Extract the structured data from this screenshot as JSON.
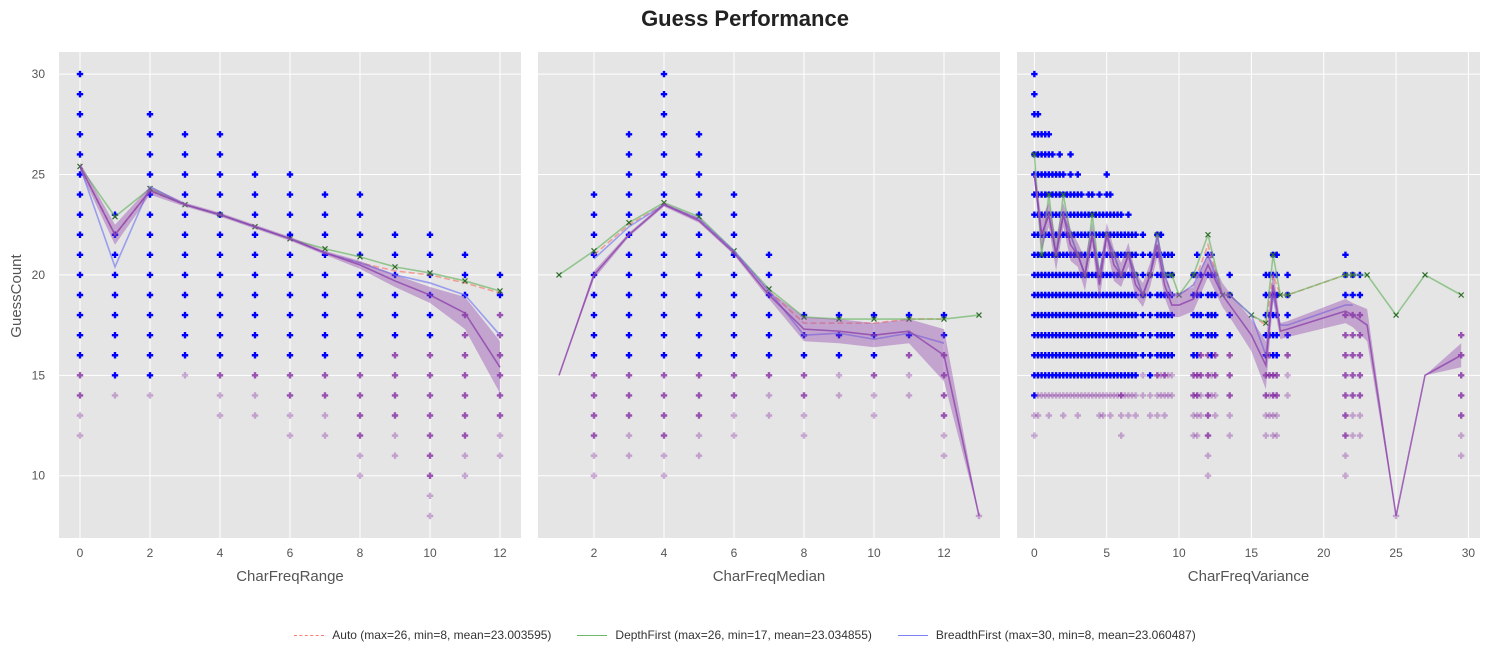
{
  "title": "Guess Performance",
  "ylabel": "GuessCount",
  "legend": [
    {
      "label": "Auto (max=26, min=8, mean=23.003595)",
      "color": "#fa8072",
      "dash": true
    },
    {
      "label": "DepthFirst (max=26, min=17, mean=23.034855)",
      "color": "#6fb86a",
      "dash": false
    },
    {
      "label": "BreadthFirst (max=30, min=8, mean=23.060487)",
      "color": "#7b7ff2",
      "dash": false
    }
  ],
  "colors": {
    "auto": "#fa8072",
    "depth": "#6fb86a",
    "breadth": "#7b7ff2",
    "mean_line": "#8e44ad",
    "points": "#0000ff",
    "low_points": "#7d1f9e",
    "panel_bg": "#e5e5e5"
  },
  "chart_data": [
    {
      "type": "line",
      "xlabel": "CharFreqRange",
      "xlim": [
        -0.6,
        12.6
      ],
      "ylim": [
        6.9,
        31.1
      ],
      "xticks": [
        0,
        2,
        4,
        6,
        8,
        10,
        12
      ],
      "yticks": [
        10,
        15,
        20,
        25,
        30
      ],
      "x": [
        0,
        1,
        2,
        3,
        4,
        5,
        6,
        7,
        8,
        9,
        10,
        11,
        12
      ],
      "series": [
        {
          "key": "auto",
          "values": [
            25.4,
            22.0,
            24.2,
            23.5,
            23.0,
            22.4,
            21.8,
            21.1,
            20.6,
            20.2,
            20.0,
            19.6,
            19.1
          ]
        },
        {
          "key": "depth",
          "values": [
            25.4,
            22.9,
            24.3,
            23.5,
            23.0,
            22.4,
            21.8,
            21.3,
            20.9,
            20.4,
            20.1,
            19.7,
            19.2
          ]
        },
        {
          "key": "breadth",
          "values": [
            25.4,
            20.4,
            24.4,
            23.5,
            23.0,
            22.4,
            21.8,
            21.1,
            20.6,
            20.0,
            19.6,
            19.0,
            17.0
          ]
        },
        {
          "key": "mean",
          "values": [
            25.4,
            22.0,
            24.2,
            23.5,
            23.0,
            22.4,
            21.8,
            21.1,
            20.5,
            19.7,
            19.0,
            18.1,
            15.4
          ],
          "band": [
            0.2,
            0.5,
            0.2,
            0.1,
            0.1,
            0.1,
            0.1,
            0.1,
            0.2,
            0.3,
            0.4,
            0.8,
            1.3
          ]
        }
      ],
      "scatter": {
        "x": [
          0,
          1,
          2,
          3,
          4,
          5,
          6,
          7,
          8,
          9,
          10,
          11,
          12
        ],
        "ymin": [
          12,
          14,
          14,
          15,
          13,
          13,
          12,
          12,
          10,
          11,
          8,
          10,
          11
        ],
        "ymax": [
          30,
          23,
          28,
          27,
          27,
          25,
          25,
          24,
          24,
          22,
          22,
          21,
          20
        ],
        "bluemin": [
          16,
          15,
          15,
          16,
          16,
          16,
          16,
          16,
          16,
          17,
          17,
          19,
          19
        ]
      }
    },
    {
      "type": "line",
      "xlabel": "CharFreqMedian",
      "xlim": [
        0.4,
        13.6
      ],
      "ylim": [
        6.9,
        31.1
      ],
      "xticks": [
        2,
        4,
        6,
        8,
        10,
        12
      ],
      "yticks": [
        10,
        15,
        20,
        25,
        30
      ],
      "x": [
        1,
        2,
        3,
        4,
        5,
        6,
        7,
        8,
        9,
        10,
        11,
        12,
        13
      ],
      "series": [
        {
          "key": "auto",
          "values": [
            null,
            21.0,
            22.5,
            23.5,
            22.8,
            21.2,
            19.2,
            17.6,
            17.6,
            17.6,
            17.8,
            17.8,
            null
          ]
        },
        {
          "key": "depth",
          "values": [
            20.0,
            21.2,
            22.6,
            23.6,
            22.9,
            21.2,
            19.3,
            17.9,
            17.8,
            17.8,
            17.8,
            17.8,
            18.0
          ]
        },
        {
          "key": "breadth",
          "values": [
            null,
            20.8,
            22.4,
            23.5,
            22.8,
            21.2,
            19.2,
            17.0,
            17.1,
            16.8,
            17.1,
            16.6,
            null
          ]
        },
        {
          "key": "mean",
          "values": [
            15.0,
            20.0,
            22.0,
            23.5,
            22.7,
            21.1,
            19.0,
            17.3,
            17.2,
            17.0,
            17.2,
            16.0,
            8.0
          ],
          "band": [
            0,
            0.2,
            0.1,
            0.1,
            0.1,
            0.1,
            0.2,
            0.6,
            0.6,
            0.6,
            0.6,
            1.3,
            0
          ]
        }
      ],
      "scatter": {
        "x": [
          2,
          3,
          4,
          5,
          6,
          7,
          8,
          9,
          10,
          11,
          12,
          13
        ],
        "ymin": [
          10,
          11,
          10,
          11,
          12,
          13,
          12,
          14,
          13,
          14,
          11,
          8
        ],
        "ymax": [
          24,
          27,
          30,
          27,
          24,
          21,
          18,
          18,
          18,
          18,
          18,
          8
        ],
        "bluemin": [
          16,
          16,
          16,
          16,
          16,
          16,
          16,
          16,
          16,
          17,
          17,
          99
        ]
      }
    },
    {
      "type": "line",
      "xlabel": "CharFreqVariance",
      "xlim": [
        -1.2,
        30.8
      ],
      "ylim": [
        6.9,
        31.1
      ],
      "xticks": [
        0,
        5,
        10,
        15,
        20,
        25,
        30
      ],
      "yticks": [
        10,
        15,
        20,
        25,
        30
      ],
      "x": [
        0,
        0.5,
        1,
        1.5,
        2,
        2.5,
        3,
        3.5,
        4,
        4.5,
        5,
        5.5,
        6,
        6.5,
        7,
        7.5,
        8,
        8.5,
        9,
        9.5,
        10,
        11,
        12,
        13,
        13.5,
        15,
        16,
        16.5,
        17,
        17.5,
        21.5,
        22,
        23,
        25,
        27,
        29.5
      ],
      "series": [
        {
          "key": "auto",
          "values": [
            25,
            22,
            23,
            21,
            23,
            22,
            21,
            20,
            22,
            20,
            22,
            21,
            20,
            21,
            20,
            19,
            20,
            22,
            20,
            19,
            19,
            19.5,
            21.5,
            19,
            19,
            18,
            17.5,
            20,
            19,
            19,
            20,
            20,
            null,
            null,
            null,
            null
          ]
        },
        {
          "key": "depth",
          "values": [
            26,
            21,
            24,
            21,
            24,
            22,
            21,
            20,
            23,
            20,
            22,
            21,
            20,
            21,
            20,
            19,
            20,
            22,
            20,
            20,
            19,
            20,
            22,
            19,
            19,
            18,
            17.6,
            21,
            19,
            19,
            20,
            20,
            20,
            18,
            20,
            19
          ]
        },
        {
          "key": "breadth",
          "values": [
            25,
            22,
            23,
            21,
            23,
            22,
            21,
            20,
            22,
            20,
            22,
            21,
            20,
            21,
            20,
            19,
            20,
            22,
            20,
            19,
            19,
            19.5,
            21,
            19,
            19,
            18,
            16,
            19,
            17.5,
            17.5,
            18.5,
            18.5,
            null,
            null,
            null,
            null
          ]
        },
        {
          "key": "mean",
          "values": [
            25,
            22,
            23,
            21,
            23,
            21.5,
            21,
            20,
            22,
            19.5,
            22,
            20.5,
            20,
            21,
            19.5,
            19,
            20,
            21.5,
            19.5,
            18.5,
            18.5,
            18.8,
            20.5,
            19,
            18.5,
            17,
            15.5,
            19.5,
            17.2,
            17.3,
            18.2,
            18.0,
            17.5,
            8,
            15,
            16
          ],
          "band": [
            0.4,
            0.8,
            0.6,
            0.8,
            0.6,
            0.8,
            0.6,
            0.8,
            0.6,
            0.8,
            0.6,
            0.8,
            0.6,
            0.6,
            0.6,
            0.6,
            0.6,
            0.6,
            0.6,
            0.6,
            0.6,
            0.6,
            0.6,
            0.6,
            0.6,
            0.8,
            1.2,
            0.8,
            0.4,
            0.4,
            0.6,
            0.6,
            0.8,
            0,
            0,
            0.6
          ]
        }
      ],
      "scatter": {
        "x": [
          0,
          0.25,
          0.5,
          0.75,
          1,
          1.25,
          1.5,
          1.75,
          2,
          2.25,
          2.5,
          2.75,
          3,
          3.25,
          3.5,
          3.75,
          4,
          4.25,
          4.5,
          4.75,
          5,
          5.25,
          5.5,
          5.75,
          6,
          6.25,
          6.5,
          6.75,
          7,
          7.5,
          8,
          8.5,
          8.75,
          9,
          9.25,
          9.5,
          11,
          11.25,
          11.5,
          12,
          12.25,
          12.5,
          13.5,
          16,
          16.25,
          16.5,
          16.75,
          17.5,
          21.5,
          22,
          22.5,
          25,
          29.5
        ],
        "ymin": [
          12,
          13,
          14,
          14,
          13,
          14,
          14,
          14,
          13,
          14,
          14,
          14,
          13,
          14,
          14,
          14,
          14,
          14,
          13,
          13,
          14,
          13,
          14,
          14,
          12,
          14,
          13,
          14,
          13,
          14,
          13,
          13,
          14,
          13,
          14,
          14,
          12,
          12,
          13,
          10,
          14,
          13,
          12,
          12,
          13,
          12,
          12,
          14,
          10,
          12,
          12,
          8,
          11
        ],
        "ymax": [
          30,
          28,
          27,
          27,
          27,
          26,
          25,
          26,
          25,
          24,
          26,
          24,
          25,
          24,
          23,
          24,
          24,
          23,
          24,
          23,
          25,
          24,
          23,
          23,
          23,
          22,
          23,
          22,
          22,
          22,
          21,
          22,
          22,
          21,
          21,
          21,
          20,
          21,
          20,
          21,
          21,
          20,
          20,
          20,
          20,
          21,
          21,
          20,
          21,
          20,
          20,
          8,
          17
        ],
        "bluemin": [
          14,
          15,
          15,
          15,
          15,
          15,
          15,
          15,
          15,
          15,
          15,
          15,
          15,
          15,
          15,
          15,
          15,
          15,
          15,
          15,
          15,
          15,
          15,
          15,
          15,
          15,
          15,
          15,
          15,
          16,
          15,
          16,
          16,
          16,
          16,
          16,
          16,
          16,
          17,
          17,
          16,
          17,
          17,
          16,
          17,
          16,
          16,
          17,
          19,
          19,
          19,
          99,
          99
        ]
      }
    }
  ]
}
